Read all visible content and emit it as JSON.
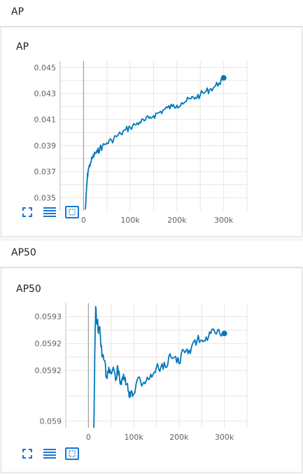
{
  "sections": [
    {
      "header": "AP",
      "card_title": "AP"
    },
    {
      "header": "AP50",
      "card_title": "AP50"
    }
  ],
  "colors": {
    "series": "#0077bb",
    "grid": "#e6e6e6",
    "zero_line": "#9e9e9e",
    "control": "#1976d2"
  },
  "icons": [
    "fit-to-data-icon",
    "toggle-log-scale-icon",
    "zoom-reset-icon"
  ],
  "chart_data": [
    {
      "type": "line",
      "title": "AP",
      "xlabel": "",
      "ylabel": "",
      "xlim": [
        -50000,
        350000
      ],
      "ylim": [
        0.034,
        0.0455
      ],
      "x_ticks": [
        0,
        100000,
        200000,
        300000
      ],
      "x_tick_labels": [
        "0",
        "100k",
        "200k",
        "300k"
      ],
      "y_ticks": [
        0.035,
        0.037,
        0.039,
        0.041,
        0.043,
        0.045
      ],
      "y_tick_labels": [
        "0.035",
        "0.037",
        "0.039",
        "0.041",
        "0.043",
        "0.045"
      ],
      "grid": true,
      "series": [
        {
          "x": [
            4000,
            6000,
            8000,
            10000,
            15000,
            20000,
            25000,
            30000,
            35000,
            40000,
            50000,
            60000,
            70000,
            80000,
            90000,
            100000,
            110000,
            120000,
            130000,
            140000,
            150000,
            160000,
            170000,
            180000,
            190000,
            200000,
            210000,
            220000,
            230000,
            240000,
            250000,
            260000,
            270000,
            280000,
            290000,
            300000
          ],
          "y": [
            0.0341,
            0.0354,
            0.0365,
            0.0371,
            0.0377,
            0.0381,
            0.0384,
            0.0385,
            0.0388,
            0.0389,
            0.0392,
            0.0394,
            0.0397,
            0.0399,
            0.0402,
            0.0404,
            0.0406,
            0.0408,
            0.0409,
            0.0411,
            0.0413,
            0.0415,
            0.0417,
            0.0419,
            0.042,
            0.0421,
            0.0423,
            0.0424,
            0.0426,
            0.0427,
            0.0429,
            0.0431,
            0.0433,
            0.0435,
            0.0438,
            0.0442
          ]
        }
      ]
    },
    {
      "type": "line",
      "title": "AP50",
      "xlabel": "",
      "ylabel": "",
      "xlim": [
        -50000,
        350000
      ],
      "ylim": [
        0.05898,
        0.05935
      ],
      "x_ticks": [
        0,
        100000,
        200000,
        300000
      ],
      "x_tick_labels": [
        "0",
        "100k",
        "200k",
        "300k"
      ],
      "y_ticks": [
        0.059,
        0.05915,
        0.05923,
        0.05931
      ],
      "y_tick_labels": [
        "0.059",
        "0.0592",
        "0.0592",
        "0.0593"
      ],
      "grid": true,
      "series": [
        {
          "x": [
            12000,
            14000,
            16000,
            18000,
            20000,
            22000,
            25000,
            30000,
            35000,
            40000,
            45000,
            50000,
            55000,
            60000,
            65000,
            70000,
            75000,
            80000,
            85000,
            90000,
            95000,
            100000,
            110000,
            120000,
            130000,
            140000,
            150000,
            160000,
            170000,
            180000,
            190000,
            200000,
            210000,
            220000,
            230000,
            240000,
            250000,
            260000,
            270000,
            280000,
            290000,
            300000
          ],
          "y": [
            0.05898,
            0.0592,
            0.05934,
            0.05929,
            0.0593,
            0.05926,
            0.05928,
            0.05919,
            0.05918,
            0.05913,
            0.05916,
            0.05914,
            0.05916,
            0.05912,
            0.05916,
            0.05911,
            0.05913,
            0.05912,
            0.05911,
            0.05907,
            0.05909,
            0.05908,
            0.05913,
            0.05911,
            0.05913,
            0.05913,
            0.05916,
            0.05916,
            0.05916,
            0.0592,
            0.05919,
            0.05917,
            0.05921,
            0.0592,
            0.05923,
            0.05924,
            0.05924,
            0.05925,
            0.05926,
            0.05926,
            0.05926,
            0.05926
          ]
        }
      ]
    }
  ]
}
